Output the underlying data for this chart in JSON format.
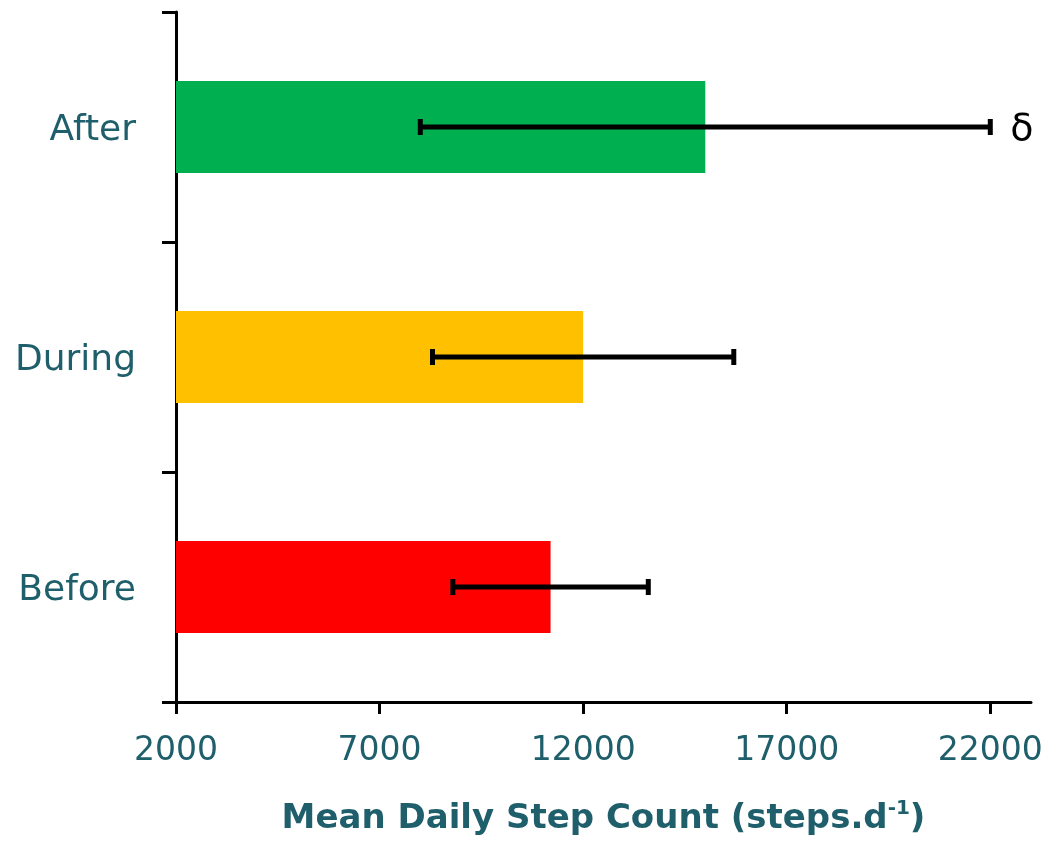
{
  "chart_data": {
    "type": "bar",
    "orientation": "horizontal",
    "xlabel": "Mean Daily Step Count (steps.d$^{-1}$)",
    "categories": [
      "After",
      "During",
      "Before"
    ],
    "values": [
      15000,
      12000,
      11200
    ],
    "colors": [
      "#00b050",
      "#ffc000",
      "#ff0000"
    ],
    "errors": [
      7000,
      3700,
      2400
    ],
    "xlim": [
      2000,
      23000
    ],
    "xticks": [
      2000,
      7000,
      12000,
      17000,
      22000
    ],
    "grid": false,
    "annotations": [
      {
        "text": "δ",
        "x": 22000,
        "y": "After"
      }
    ]
  }
}
